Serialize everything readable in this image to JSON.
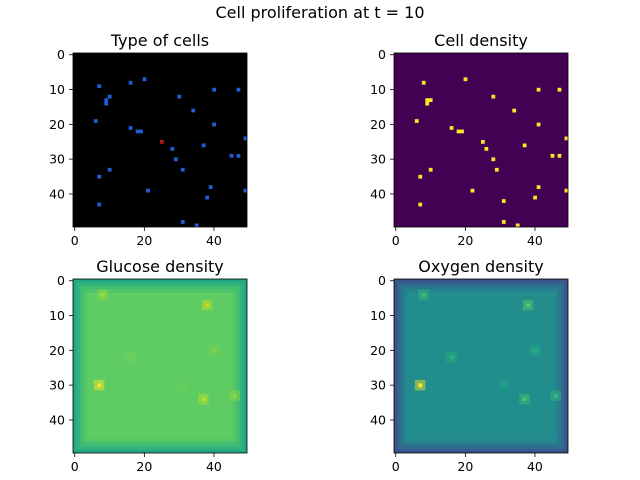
{
  "figure": {
    "suptitle": "Cell proliferation at t = 10"
  },
  "chart_data": [
    {
      "type": "heatmap",
      "title": "Type of cells",
      "grid_size": 50,
      "xticks": [
        0,
        20,
        40
      ],
      "yticks": [
        0,
        10,
        20,
        30,
        40
      ],
      "background_color": "#000000",
      "colors": {
        "healthy": "#1f5fd6",
        "cancer": "#b01818"
      },
      "cells": [
        [
          7,
          9
        ],
        [
          10,
          12
        ],
        [
          9,
          13
        ],
        [
          9,
          14
        ],
        [
          16,
          8
        ],
        [
          20,
          7
        ],
        [
          16,
          21
        ],
        [
          18,
          22
        ],
        [
          19,
          22
        ],
        [
          25,
          25
        ],
        [
          28,
          27
        ],
        [
          29,
          30
        ],
        [
          30,
          12
        ],
        [
          31,
          33
        ],
        [
          34,
          16
        ],
        [
          37,
          26
        ],
        [
          38,
          41
        ],
        [
          40,
          10
        ],
        [
          40,
          20
        ],
        [
          39,
          38
        ],
        [
          45,
          29
        ],
        [
          47,
          29
        ],
        [
          47,
          10
        ],
        [
          49,
          24
        ],
        [
          49,
          39
        ],
        [
          10,
          33
        ],
        [
          7,
          35
        ],
        [
          7,
          43
        ],
        [
          21,
          39
        ],
        [
          31,
          48
        ],
        [
          35,
          49
        ],
        [
          6,
          19
        ]
      ],
      "cancer_cells": [
        [
          25,
          25
        ]
      ]
    },
    {
      "type": "heatmap",
      "title": "Cell density",
      "grid_size": 50,
      "xticks": [
        0,
        20,
        40
      ],
      "yticks": [
        0,
        10,
        20,
        30,
        40
      ],
      "background_color": "#440154",
      "cell_color": "#fde725",
      "cells": [
        [
          6,
          19
        ],
        [
          8,
          8
        ],
        [
          9,
          13
        ],
        [
          9,
          14
        ],
        [
          10,
          13
        ],
        [
          16,
          21
        ],
        [
          18,
          22
        ],
        [
          19,
          22
        ],
        [
          20,
          7
        ],
        [
          25,
          25
        ],
        [
          26,
          27
        ],
        [
          28,
          12
        ],
        [
          28,
          30
        ],
        [
          29,
          33
        ],
        [
          31,
          42
        ],
        [
          31,
          48
        ],
        [
          34,
          16
        ],
        [
          35,
          49
        ],
        [
          37,
          26
        ],
        [
          40,
          41
        ],
        [
          41,
          10
        ],
        [
          41,
          20
        ],
        [
          41,
          38
        ],
        [
          45,
          29
        ],
        [
          47,
          10
        ],
        [
          47,
          29
        ],
        [
          49,
          24
        ],
        [
          49,
          39
        ],
        [
          10,
          33
        ],
        [
          7,
          35
        ],
        [
          7,
          43
        ],
        [
          22,
          39
        ]
      ]
    },
    {
      "type": "heatmap",
      "title": "Glucose density",
      "grid_size": 50,
      "xticks": [
        0,
        20,
        40
      ],
      "yticks": [
        0,
        10,
        20,
        30,
        40
      ],
      "interior_color": "#5fcc63",
      "border_colors": [
        "#25a785",
        "#33b37c",
        "#41bd72",
        "#52c569"
      ],
      "hotspots": [
        {
          "x": 8,
          "y": 4,
          "color": "#9bd93c"
        },
        {
          "x": 38,
          "y": 7,
          "color": "#c6e021"
        },
        {
          "x": 7,
          "y": 30,
          "color": "#fde725"
        },
        {
          "x": 37,
          "y": 34,
          "color": "#b5de2b"
        },
        {
          "x": 46,
          "y": 33,
          "color": "#8fd744"
        },
        {
          "x": 16,
          "y": 22,
          "color": "#73d056"
        },
        {
          "x": 40,
          "y": 20,
          "color": "#7ad151"
        },
        {
          "x": 31,
          "y": 30,
          "color": "#6ccd5a"
        }
      ]
    },
    {
      "type": "heatmap",
      "title": "Oxygen density",
      "grid_size": 50,
      "xticks": [
        0,
        20,
        40
      ],
      "yticks": [
        0,
        10,
        20,
        30,
        40
      ],
      "interior_color": "#218e8d",
      "border_colors": [
        "#3b528b",
        "#31688e",
        "#2a788e",
        "#24868e"
      ],
      "hotspots": [
        {
          "x": 8,
          "y": 4,
          "color": "#3fbc73"
        },
        {
          "x": 38,
          "y": 7,
          "color": "#5ec962"
        },
        {
          "x": 7,
          "y": 30,
          "color": "#fde725"
        },
        {
          "x": 37,
          "y": 34,
          "color": "#4ac16d"
        },
        {
          "x": 46,
          "y": 33,
          "color": "#38b977"
        },
        {
          "x": 16,
          "y": 22,
          "color": "#2db27d"
        },
        {
          "x": 40,
          "y": 20,
          "color": "#29af7f"
        },
        {
          "x": 31,
          "y": 30,
          "color": "#1fa188"
        }
      ]
    }
  ]
}
